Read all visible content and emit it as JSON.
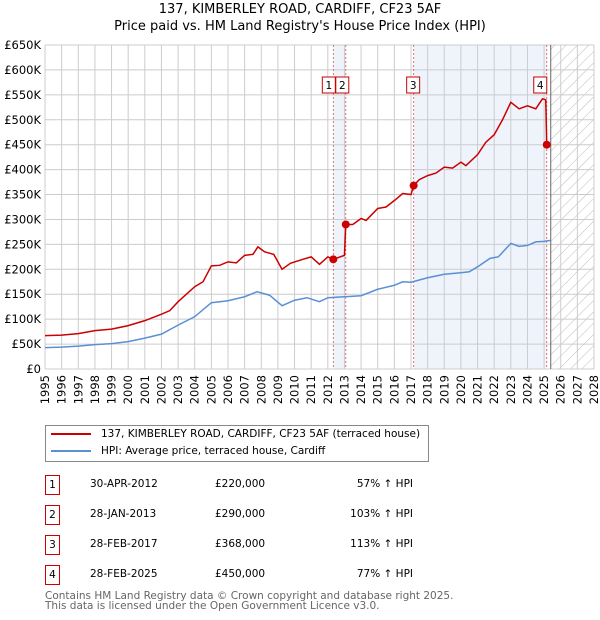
{
  "chart_data": {
    "type": "line",
    "title": "137, KIMBERLEY ROAD, CARDIFF, CF23 5AF",
    "subtitle": "Price paid vs. HM Land Registry's House Price Index (HPI)",
    "xlim": [
      1995,
      2028
    ],
    "ylim": [
      0,
      650000
    ],
    "x_ticks": [
      "1995",
      "1996",
      "1997",
      "1998",
      "1999",
      "2000",
      "2001",
      "2002",
      "2003",
      "2004",
      "2005",
      "2006",
      "2007",
      "2008",
      "2009",
      "2010",
      "2011",
      "2012",
      "2013",
      "2014",
      "2015",
      "2016",
      "2017",
      "2018",
      "2019",
      "2020",
      "2021",
      "2022",
      "2023",
      "2024",
      "2025",
      "2026",
      "2027",
      "2028"
    ],
    "y_ticks": [
      {
        "v": 0,
        "label": "£0"
      },
      {
        "v": 50000,
        "label": "£50K"
      },
      {
        "v": 100000,
        "label": "£100K"
      },
      {
        "v": 150000,
        "label": "£150K"
      },
      {
        "v": 200000,
        "label": "£200K"
      },
      {
        "v": 250000,
        "label": "£250K"
      },
      {
        "v": 300000,
        "label": "£300K"
      },
      {
        "v": 350000,
        "label": "£350K"
      },
      {
        "v": 400000,
        "label": "£400K"
      },
      {
        "v": 450000,
        "label": "£450K"
      },
      {
        "v": 500000,
        "label": "£500K"
      },
      {
        "v": 550000,
        "label": "£550K"
      },
      {
        "v": 600000,
        "label": "£600K"
      },
      {
        "v": 650000,
        "label": "£650K"
      }
    ],
    "grid": true,
    "forecast_start": 2025.4,
    "shaded_ranges": [
      [
        2012.33,
        2013.08
      ],
      [
        2017.16,
        2025.16
      ]
    ],
    "series": [
      {
        "name": "137, KIMBERLEY ROAD, CARDIFF, CF23 5AF (terraced house)",
        "color": "#cc0000",
        "x": [
          1995,
          1996,
          1997,
          1998,
          1999,
          2000,
          2001,
          2002,
          2002.5,
          2003,
          2004,
          2004.5,
          2005,
          2005.5,
          2006,
          2006.5,
          2007,
          2007.5,
          2007.8,
          2008.2,
          2008.75,
          2009.25,
          2009.75,
          2010.5,
          2011,
          2011.5,
          2012,
          2012.33,
          2013.0,
          2013.08,
          2013.5,
          2014,
          2014.3,
          2015,
          2015.5,
          2016,
          2016.5,
          2017.0,
          2017.16,
          2017.5,
          2018,
          2018.5,
          2019,
          2019.5,
          2020,
          2020.3,
          2021,
          2021.5,
          2022,
          2022.5,
          2023,
          2023.5,
          2024,
          2024.5,
          2024.9,
          2025.1,
          2025.16
        ],
        "values": [
          67000,
          68000,
          71000,
          77000,
          80000,
          87000,
          97000,
          110000,
          117000,
          135000,
          165000,
          175000,
          207000,
          208000,
          215000,
          213000,
          228000,
          230000,
          245000,
          235000,
          230000,
          200000,
          212000,
          220000,
          225000,
          210000,
          225000,
          220000,
          228000,
          290000,
          290000,
          302000,
          298000,
          322000,
          325000,
          338000,
          352000,
          350000,
          368000,
          380000,
          388000,
          393000,
          405000,
          403000,
          415000,
          408000,
          430000,
          455000,
          470000,
          500000,
          535000,
          522000,
          528000,
          522000,
          542000,
          540000,
          450000
        ]
      },
      {
        "name": "HPI: Average price, terraced house, Cardiff",
        "color": "#5b8fd4",
        "x": [
          1995,
          1996,
          1997,
          1998,
          1999,
          2000,
          2001,
          2002,
          2003,
          2004,
          2005,
          2006,
          2007,
          2007.75,
          2008.5,
          2009.25,
          2010,
          2010.75,
          2011.5,
          2012,
          2013,
          2014,
          2015,
          2016,
          2016.5,
          2017,
          2018,
          2019,
          2020,
          2020.5,
          2021,
          2021.75,
          2022.25,
          2023,
          2023.5,
          2024,
          2024.5,
          2025,
          2025.4
        ],
        "values": [
          43000,
          44000,
          46000,
          49000,
          51000,
          55000,
          62000,
          70000,
          88000,
          105000,
          133000,
          137000,
          145000,
          155000,
          148000,
          127000,
          138000,
          143000,
          135000,
          143000,
          145000,
          147000,
          160000,
          168000,
          175000,
          174000,
          183000,
          190000,
          193000,
          195000,
          205000,
          222000,
          225000,
          252000,
          246000,
          248000,
          255000,
          256000,
          258000
        ]
      }
    ],
    "sales": [
      {
        "id": "1",
        "x": 2012.33,
        "value": 220000,
        "date": "30-APR-2012",
        "price": "£220,000",
        "hpi": "57% ↑ HPI"
      },
      {
        "id": "2",
        "x": 2013.08,
        "value": 290000,
        "date": "28-JAN-2013",
        "price": "£290,000",
        "hpi": "103% ↑ HPI"
      },
      {
        "id": "3",
        "x": 2017.16,
        "value": 368000,
        "date": "28-FEB-2017",
        "price": "£368,000",
        "hpi": "113% ↑ HPI"
      },
      {
        "id": "4",
        "x": 2025.16,
        "value": 450000,
        "date": "28-FEB-2025",
        "price": "£450,000",
        "hpi": "77% ↑ HPI"
      }
    ]
  },
  "footer": {
    "line1": "Contains HM Land Registry data © Crown copyright and database right 2025.",
    "line2": "This data is licensed under the Open Government Licence v3.0."
  }
}
